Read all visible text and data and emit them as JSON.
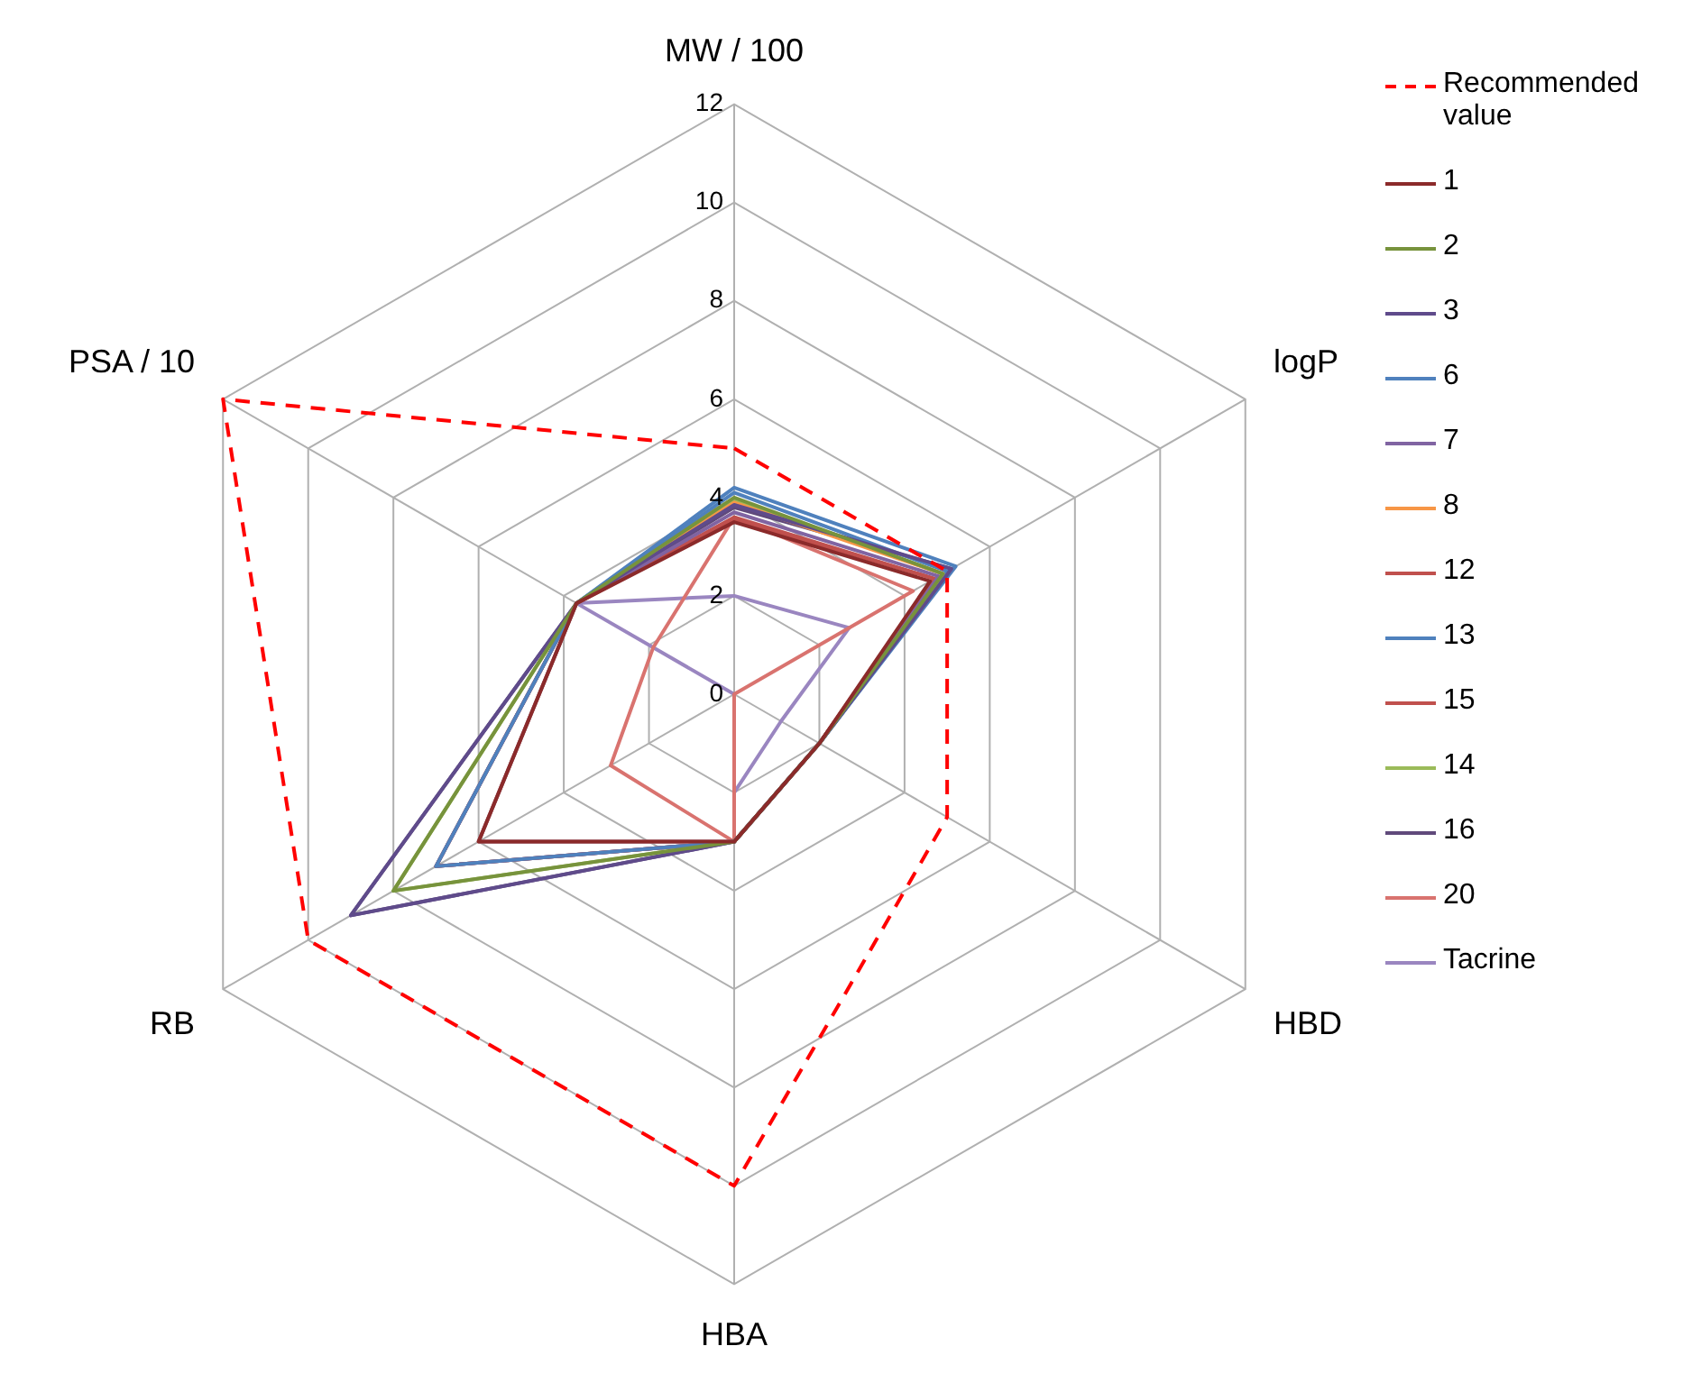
{
  "chart_data": {
    "type": "radar",
    "categories": [
      "MW / 100",
      "logP",
      "HBD",
      "HBA",
      "RB",
      "PSA / 10"
    ],
    "ylim": [
      0,
      12
    ],
    "yticks": [
      0,
      2,
      4,
      6,
      8,
      10,
      12
    ],
    "grid": true,
    "legend": "right",
    "marker": "none",
    "series": [
      {
        "name": "Recommended value",
        "color": "#ff0000",
        "line_style": "dashed",
        "values": [
          5,
          5,
          5,
          10,
          10,
          12
        ]
      },
      {
        "name": "1",
        "color": "#8b2a2a",
        "values": [
          3.5,
          4.6,
          2,
          3,
          6,
          3.7
        ]
      },
      {
        "name": "2",
        "color": "#77933c",
        "values": [
          4,
          4.9,
          2,
          3,
          8,
          3.7
        ]
      },
      {
        "name": "3",
        "color": "#5f4b8b",
        "values": [
          3.85,
          5.1,
          2,
          3,
          9,
          3.7
        ]
      },
      {
        "name": "6",
        "color": "#4f81bd",
        "values": [
          4.2,
          5.2,
          2,
          3,
          7,
          3.7
        ]
      },
      {
        "name": "7",
        "color": "#8064a2",
        "values": [
          3.7,
          4.8,
          2,
          3,
          6,
          3.7
        ]
      },
      {
        "name": "8",
        "color": "#f79646",
        "values": [
          3.9,
          4.9,
          2,
          3,
          6,
          3.7
        ]
      },
      {
        "name": "12",
        "color": "#c0504d",
        "values": [
          3.6,
          4.7,
          2,
          3,
          7,
          3.7
        ]
      },
      {
        "name": "13",
        "color": "#4f81bd",
        "values": [
          4.1,
          5,
          2,
          3,
          7,
          3.7
        ]
      },
      {
        "name": "15",
        "color": "#c0504d",
        "values": [
          3.55,
          4.7,
          2,
          3,
          7,
          3.7
        ]
      },
      {
        "name": "14",
        "color": "#9bbb59",
        "values": [
          3.95,
          4.9,
          2,
          3,
          8,
          3.7
        ]
      },
      {
        "name": "16",
        "color": "#604a7b",
        "values": [
          3.8,
          5.1,
          2,
          3,
          9,
          3.7
        ]
      },
      {
        "name": "20",
        "color": "#d9736f",
        "values": [
          3.6,
          4.2,
          0,
          3,
          2.9,
          1.9
        ]
      },
      {
        "name": "Tacrine",
        "color": "#9a86c0",
        "values": [
          2,
          2.7,
          1.1,
          2,
          0,
          3.7
        ]
      }
    ]
  }
}
